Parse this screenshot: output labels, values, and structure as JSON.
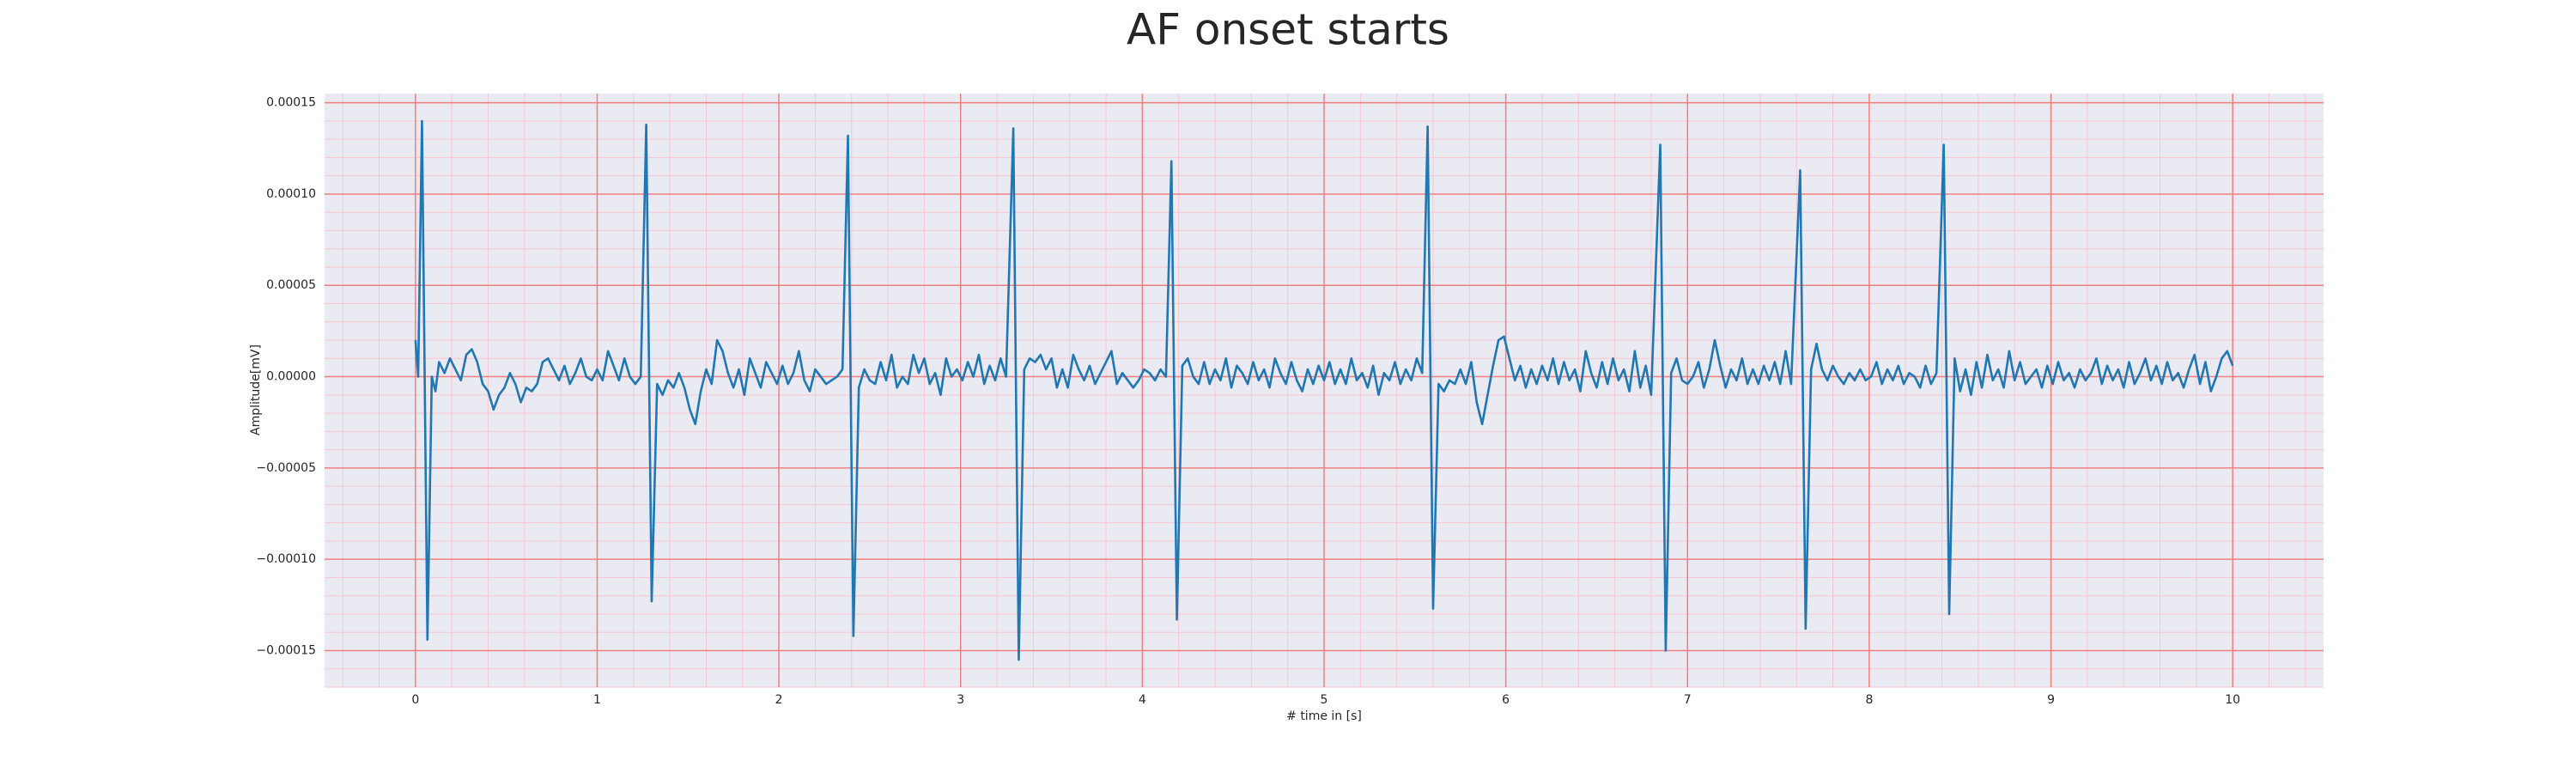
{
  "chart_data": {
    "type": "line",
    "title": "AF onset starts",
    "x_label": "# time in [s]",
    "y_label": "Amplitude[mV]",
    "color": "#1f77b4",
    "grid": true,
    "grid_color": "#f08080",
    "minor_grid": {
      "x_step": 0.2,
      "y_step": 1e-05,
      "color": "#f7c6d0"
    },
    "xlim": [
      -0.5,
      10.5
    ],
    "xticks": [
      0,
      1,
      2,
      3,
      4,
      5,
      6,
      7,
      8,
      9,
      10
    ],
    "ylim": [
      -0.00017,
      0.000155
    ],
    "yticks": [
      {
        "value": -0.00015,
        "label": "−0.00015"
      },
      {
        "value": -0.0001,
        "label": "−0.00010"
      },
      {
        "value": -5e-05,
        "label": "−0.00005"
      },
      {
        "value": 0,
        "label": "0.00000"
      },
      {
        "value": 5e-05,
        "label": "0.00005"
      },
      {
        "value": 0.0001,
        "label": "0.00010"
      },
      {
        "value": 0.00015,
        "label": "0.00015"
      }
    ],
    "x": [
      0,
      0.015,
      0.036,
      0.066,
      0.09,
      0.11,
      0.13,
      0.16,
      0.19,
      0.22,
      0.25,
      0.28,
      0.31,
      0.34,
      0.37,
      0.4,
      0.43,
      0.46,
      0.49,
      0.52,
      0.55,
      0.58,
      0.61,
      0.64,
      0.67,
      0.7,
      0.73,
      0.76,
      0.79,
      0.82,
      0.85,
      0.88,
      0.91,
      0.94,
      0.97,
      1.0,
      1.03,
      1.06,
      1.09,
      1.12,
      1.15,
      1.18,
      1.21,
      1.24,
      1.27,
      1.3,
      1.33,
      1.36,
      1.39,
      1.42,
      1.45,
      1.48,
      1.51,
      1.54,
      1.57,
      1.6,
      1.63,
      1.66,
      1.69,
      1.72,
      1.75,
      1.78,
      1.81,
      1.84,
      1.87,
      1.9,
      1.93,
      1.96,
      1.99,
      2.02,
      2.05,
      2.08,
      2.11,
      2.14,
      2.17,
      2.2,
      2.23,
      2.26,
      2.29,
      2.32,
      2.35,
      2.38,
      2.41,
      2.44,
      2.47,
      2.5,
      2.53,
      2.56,
      2.59,
      2.62,
      2.65,
      2.68,
      2.71,
      2.74,
      2.77,
      2.8,
      2.83,
      2.86,
      2.89,
      2.92,
      2.95,
      2.98,
      3.01,
      3.04,
      3.07,
      3.1,
      3.13,
      3.16,
      3.19,
      3.22,
      3.25,
      3.29,
      3.32,
      3.35,
      3.38,
      3.41,
      3.44,
      3.47,
      3.5,
      3.53,
      3.56,
      3.59,
      3.62,
      3.65,
      3.68,
      3.71,
      3.74,
      3.77,
      3.8,
      3.83,
      3.86,
      3.89,
      3.92,
      3.95,
      3.98,
      4.01,
      4.04,
      4.07,
      4.1,
      4.13,
      4.16,
      4.19,
      4.22,
      4.25,
      4.28,
      4.31,
      4.34,
      4.37,
      4.4,
      4.43,
      4.46,
      4.49,
      4.52,
      4.55,
      4.58,
      4.61,
      4.64,
      4.67,
      4.7,
      4.73,
      4.76,
      4.79,
      4.82,
      4.85,
      4.88,
      4.91,
      4.94,
      4.97,
      5.0,
      5.03,
      5.06,
      5.09,
      5.12,
      5.15,
      5.18,
      5.21,
      5.24,
      5.27,
      5.3,
      5.33,
      5.36,
      5.39,
      5.42,
      5.45,
      5.48,
      5.51,
      5.54,
      5.57,
      5.6,
      5.63,
      5.66,
      5.69,
      5.72,
      5.75,
      5.78,
      5.81,
      5.84,
      5.87,
      5.9,
      5.93,
      5.96,
      5.99,
      6.02,
      6.05,
      6.08,
      6.11,
      6.14,
      6.17,
      6.2,
      6.23,
      6.26,
      6.29,
      6.32,
      6.35,
      6.38,
      6.41,
      6.44,
      6.47,
      6.5,
      6.53,
      6.56,
      6.59,
      6.62,
      6.65,
      6.68,
      6.71,
      6.74,
      6.77,
      6.8,
      6.85,
      6.88,
      6.91,
      6.94,
      6.97,
      7.0,
      7.03,
      7.06,
      7.09,
      7.12,
      7.15,
      7.18,
      7.21,
      7.24,
      7.27,
      7.3,
      7.33,
      7.36,
      7.39,
      7.42,
      7.45,
      7.48,
      7.51,
      7.54,
      7.57,
      7.62,
      7.65,
      7.68,
      7.71,
      7.74,
      7.77,
      7.8,
      7.83,
      7.86,
      7.89,
      7.92,
      7.95,
      7.98,
      8.01,
      8.04,
      8.07,
      8.1,
      8.13,
      8.16,
      8.19,
      8.22,
      8.25,
      8.28,
      8.31,
      8.34,
      8.37,
      8.41,
      8.44,
      8.47,
      8.5,
      8.53,
      8.56,
      8.59,
      8.62,
      8.65,
      8.68,
      8.71,
      8.74,
      8.77,
      8.8,
      8.83,
      8.86,
      8.89,
      8.92,
      8.95,
      8.98,
      9.01,
      9.04,
      9.07,
      9.1,
      9.13,
      9.16,
      9.19,
      9.22,
      9.25,
      9.28,
      9.31,
      9.34,
      9.37,
      9.4,
      9.43,
      9.46,
      9.49,
      9.52,
      9.55,
      9.58,
      9.61,
      9.64,
      9.67,
      9.7,
      9.73,
      9.76,
      9.79,
      9.82,
      9.85,
      9.88,
      9.91,
      9.94,
      9.97,
      10.0
    ],
    "values": [
      2e-05,
      0,
      0.00014,
      -0.000144,
      0,
      -8e-06,
      8e-06,
      2e-06,
      1e-05,
      4e-06,
      -2e-06,
      1.2e-05,
      1.5e-05,
      8e-06,
      -4e-06,
      -8e-06,
      -1.8e-05,
      -1e-05,
      -6e-06,
      2e-06,
      -4e-06,
      -1.4e-05,
      -6e-06,
      -8e-06,
      -4e-06,
      8e-06,
      1e-05,
      4e-06,
      -2e-06,
      6e-06,
      -4e-06,
      2e-06,
      1e-05,
      0,
      -2e-06,
      4e-06,
      -2e-06,
      1.4e-05,
      6e-06,
      -2e-06,
      1e-05,
      0,
      -4e-06,
      0,
      0.000138,
      -0.000123,
      -4e-06,
      -1e-05,
      -2e-06,
      -6e-06,
      2e-06,
      -6e-06,
      -1.8e-05,
      -2.6e-05,
      -8e-06,
      4e-06,
      -4e-06,
      2e-05,
      1.4e-05,
      2e-06,
      -6e-06,
      4e-06,
      -1e-05,
      1e-05,
      2e-06,
      -6e-06,
      8e-06,
      2e-06,
      -4e-06,
      6e-06,
      -4e-06,
      2e-06,
      1.4e-05,
      -2e-06,
      -8e-06,
      4e-06,
      0,
      -4e-06,
      -2e-06,
      0,
      4e-06,
      0.000132,
      -0.000142,
      -6e-06,
      4e-06,
      -2e-06,
      -4e-06,
      8e-06,
      -2e-06,
      1.2e-05,
      -6e-06,
      0,
      -4e-06,
      1.2e-05,
      2e-06,
      1e-05,
      -4e-06,
      2e-06,
      -1e-05,
      1e-05,
      0,
      4e-06,
      -2e-06,
      8e-06,
      0,
      1.2e-05,
      -4e-06,
      6e-06,
      -2e-06,
      1e-05,
      0,
      0.000136,
      -0.000155,
      4e-06,
      1e-05,
      8e-06,
      1.2e-05,
      4e-06,
      1e-05,
      -6e-06,
      4e-06,
      -6e-06,
      1.2e-05,
      4e-06,
      -2e-06,
      6e-06,
      -4e-06,
      2e-06,
      8e-06,
      1.4e-05,
      -4e-06,
      2e-06,
      -2e-06,
      -6e-06,
      -2e-06,
      4e-06,
      2e-06,
      -2e-06,
      4e-06,
      0,
      0.000118,
      -0.000133,
      6e-06,
      1e-05,
      0,
      -4e-06,
      8e-06,
      -4e-06,
      4e-06,
      -2e-06,
      1e-05,
      -6e-06,
      6e-06,
      2e-06,
      -4e-06,
      8e-06,
      -2e-06,
      4e-06,
      -6e-06,
      1e-05,
      2e-06,
      -4e-06,
      8e-06,
      -2e-06,
      -8e-06,
      4e-06,
      -4e-06,
      6e-06,
      -2e-06,
      8e-06,
      -4e-06,
      4e-06,
      -4e-06,
      1e-05,
      -2e-06,
      2e-06,
      -6e-06,
      6e-06,
      -1e-05,
      2e-06,
      -2e-06,
      8e-06,
      -4e-06,
      4e-06,
      -2e-06,
      1e-05,
      2e-06,
      0.000137,
      -0.000127,
      -4e-06,
      -8e-06,
      -2e-06,
      -4e-06,
      4e-06,
      -4e-06,
      8e-06,
      -1.4e-05,
      -2.6e-05,
      -1e-05,
      6e-06,
      2e-05,
      2.2e-05,
      1e-05,
      -2e-06,
      6e-06,
      -6e-06,
      4e-06,
      -4e-06,
      6e-06,
      -2e-06,
      1e-05,
      -4e-06,
      8e-06,
      -2e-06,
      4e-06,
      -8e-06,
      1.4e-05,
      2e-06,
      -6e-06,
      8e-06,
      -4e-06,
      1e-05,
      -2e-06,
      4e-06,
      -8e-06,
      1.4e-05,
      -6e-06,
      6e-06,
      -1e-05,
      0.000127,
      -0.00015,
      2e-06,
      1e-05,
      -2e-06,
      -4e-06,
      0,
      8e-06,
      -6e-06,
      4e-06,
      2e-05,
      6e-06,
      -6e-06,
      4e-06,
      -2e-06,
      1e-05,
      -4e-06,
      4e-06,
      -4e-06,
      6e-06,
      -2e-06,
      8e-06,
      -4e-06,
      1.4e-05,
      -4e-06,
      0.000113,
      -0.000138,
      4e-06,
      1.8e-05,
      4e-06,
      -2e-06,
      6e-06,
      0,
      -4e-06,
      2e-06,
      -2e-06,
      4e-06,
      -2e-06,
      0,
      8e-06,
      -4e-06,
      4e-06,
      -2e-06,
      6e-06,
      -4e-06,
      2e-06,
      0,
      -6e-06,
      6e-06,
      -4e-06,
      2e-06,
      0.000127,
      -0.00013,
      1e-05,
      -8e-06,
      4e-06,
      -1e-05,
      8e-06,
      -6e-06,
      1.2e-05,
      -2e-06,
      4e-06,
      -6e-06,
      1.4e-05,
      -2e-06,
      8e-06,
      -4e-06,
      0,
      4e-06,
      -6e-06,
      6e-06,
      -4e-06,
      8e-06,
      -2e-06,
      2e-06,
      -6e-06,
      4e-06,
      -2e-06,
      2e-06,
      1e-05,
      -4e-06,
      6e-06,
      -2e-06,
      4e-06,
      -6e-06,
      8e-06,
      -4e-06,
      2e-06,
      1e-05,
      -2e-06,
      6e-06,
      -4e-06,
      8e-06,
      -2e-06,
      2e-06,
      -6e-06,
      4e-06,
      1.2e-05,
      -4e-06,
      8e-06,
      -8e-06,
      0,
      1e-05,
      1.4e-05,
      6e-06
    ]
  }
}
